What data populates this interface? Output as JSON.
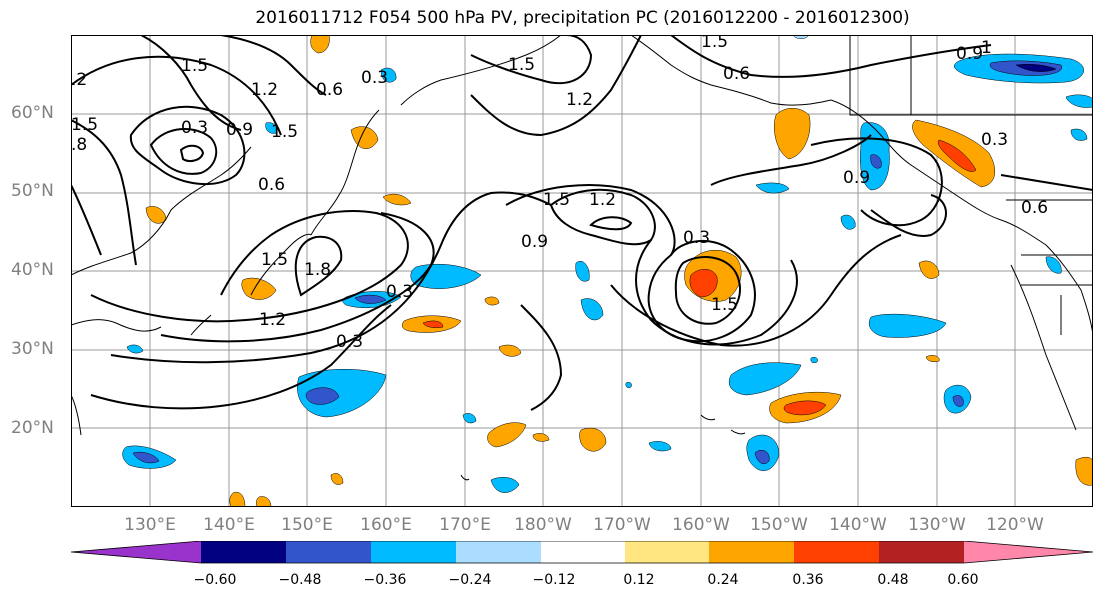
{
  "title": "2016011712 F054 500 hPa PV, precipitation PC (2016012200 - 2016012300)",
  "lat_labels": [
    "60°N",
    "50°N",
    "40°N",
    "30°N",
    "20°N"
  ],
  "lon_labels": [
    "130°E",
    "140°E",
    "150°E",
    "160°E",
    "170°E",
    "180°W",
    "170°W",
    "160°W",
    "150°W",
    "140°W",
    "130°W",
    "120°W"
  ],
  "colorbar": {
    "ticks": [
      "−0.60",
      "−0.48",
      "−0.36",
      "−0.24",
      "−0.12",
      "0.12",
      "0.24",
      "0.36",
      "0.48",
      "0.60"
    ],
    "colors": [
      "#9933cc",
      "#000080",
      "#3355cc",
      "#00bbff",
      "#aaddff",
      "#ffffff",
      "#ffe680",
      "#ffa500",
      "#ff4000",
      "#b22222",
      "#ff88aa"
    ]
  },
  "contour_labels": [
    {
      "text": "1.5"
    },
    {
      "text": ".2"
    },
    {
      "text": "1.5"
    },
    {
      "text": ".8"
    },
    {
      "text": "1.2"
    },
    {
      "text": "0.6"
    },
    {
      "text": "0.3"
    },
    {
      "text": "0.3"
    },
    {
      "text": "0.9"
    },
    {
      "text": "1.5"
    },
    {
      "text": "0.6"
    },
    {
      "text": "1.5"
    },
    {
      "text": "1.8"
    },
    {
      "text": "1.2"
    },
    {
      "text": "0.3"
    },
    {
      "text": "0.3"
    },
    {
      "text": "1.5"
    },
    {
      "text": "1.2"
    },
    {
      "text": "1.5"
    },
    {
      "text": "1.2"
    },
    {
      "text": "0.9"
    },
    {
      "text": "0.3"
    },
    {
      "text": "1.5"
    },
    {
      "text": "1.5"
    },
    {
      "text": "0.6"
    },
    {
      "text": "0.9"
    },
    {
      "text": "1"
    },
    {
      "text": "0.3"
    },
    {
      "text": "0.9"
    },
    {
      "text": "0.6"
    }
  ]
}
